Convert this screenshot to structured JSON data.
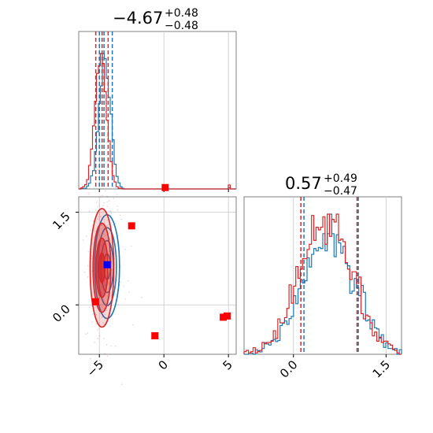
{
  "colors": {
    "blue": "#1f77b4",
    "red": "#d62728",
    "scatter_red": "#ff0000",
    "scatter_blue": "#0000ff",
    "grid": "#c8c8c8",
    "frame": "#808080"
  },
  "chart_data": {
    "type": "corner",
    "parameters": [
      "p0",
      "p1"
    ],
    "titles": [
      {
        "value": "−4.67",
        "upper": "+0.48",
        "lower": "−0.48"
      },
      {
        "value": "0.57",
        "upper": "+0.49",
        "lower": "−0.47"
      }
    ],
    "axes": {
      "p0": {
        "range": [
          -6.6,
          5.6
        ],
        "ticks": [
          -5,
          0,
          5
        ],
        "tick_labels": [
          "−5",
          "0",
          "5"
        ]
      },
      "p1": {
        "range": [
          -0.8,
          1.75
        ],
        "ticks": [
          0.0,
          1.5
        ],
        "tick_labels": [
          "0.0",
          "1.5"
        ]
      }
    },
    "series": [
      {
        "name": "",
        "color": "#1f77b4",
        "p0_quantiles": [
          -5.0,
          -4.64,
          -4.0
        ],
        "p1_quantiles": [
          0.17,
          1.05
        ],
        "p0_hist_peak_center": -4.6,
        "p1_hist_peak_center": 0.57
      },
      {
        "name": "",
        "color": "#d62728",
        "p0_quantiles": [
          -5.28,
          -4.79,
          -4.32
        ],
        "p1_quantiles": [
          0.12,
          1.03
        ],
        "p0_hist_peak_center": -4.9,
        "p1_hist_peak_center": 0.52
      }
    ],
    "joint_contours": [
      {
        "color": "#1f77b4",
        "center": [
          -4.4,
          0.62
        ],
        "sigma": [
          0.48,
          0.42
        ]
      },
      {
        "color": "#d62728",
        "center": [
          -4.8,
          0.6
        ],
        "sigma": [
          0.46,
          0.48
        ]
      }
    ],
    "scatter_points": [
      {
        "x": 0.1,
        "y": 1.9,
        "color": "#ff0000"
      },
      {
        "x": -2.5,
        "y": 1.28,
        "color": "#ff0000"
      },
      {
        "x": -5.3,
        "y": 0.05,
        "color": "#ff0000"
      },
      {
        "x": -0.7,
        "y": -0.5,
        "color": "#ff0000"
      },
      {
        "x": 4.6,
        "y": -0.2,
        "color": "#ff0000"
      },
      {
        "x": 4.9,
        "y": -0.18,
        "color": "#ff0000"
      },
      {
        "x": -4.4,
        "y": 0.65,
        "color": "#0000ff"
      }
    ],
    "grid": true
  }
}
